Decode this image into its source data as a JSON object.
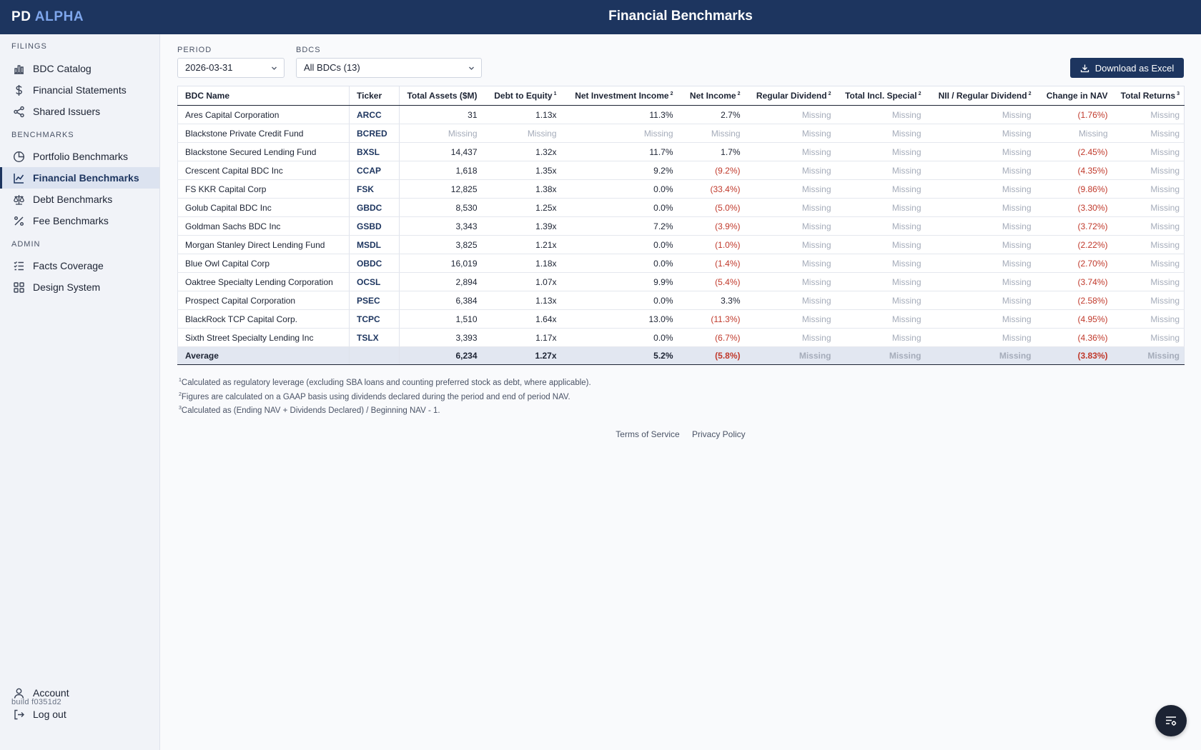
{
  "app": {
    "logo_prefix": "PD",
    "logo_accent": "ALPHA",
    "page_title": "Financial Benchmarks",
    "build": "build f0351d2",
    "colors": {
      "header_bg": "#1d355f",
      "accent": "#7ea6ec",
      "negative": "#c0392b"
    }
  },
  "sidebar": {
    "sections": [
      {
        "label": "FILINGS",
        "items": [
          {
            "label": "BDC Catalog",
            "icon": "bar-chart-icon"
          },
          {
            "label": "Financial Statements",
            "icon": "dollar-icon"
          },
          {
            "label": "Shared Issuers",
            "icon": "share-icon"
          }
        ]
      },
      {
        "label": "BENCHMARKS",
        "items": [
          {
            "label": "Portfolio Benchmarks",
            "icon": "pie-chart-icon"
          },
          {
            "label": "Financial Benchmarks",
            "icon": "line-chart-icon",
            "active": true
          },
          {
            "label": "Debt Benchmarks",
            "icon": "scale-icon"
          },
          {
            "label": "Fee Benchmarks",
            "icon": "percent-icon"
          }
        ]
      },
      {
        "label": "ADMIN",
        "items": [
          {
            "label": "Facts Coverage",
            "icon": "list-check-icon"
          },
          {
            "label": "Design System",
            "icon": "grid-icon"
          }
        ]
      }
    ],
    "bottom": [
      {
        "label": "Account",
        "icon": "user-icon"
      },
      {
        "label": "Log out",
        "icon": "logout-icon"
      }
    ]
  },
  "filters": {
    "period_label": "PERIOD",
    "period_value": "2026-03-31",
    "bdcs_label": "BDCS",
    "bdcs_value": "All BDCs (13)",
    "download_label": "Download as Excel"
  },
  "table": {
    "columns": [
      {
        "label": "BDC Name",
        "sup": ""
      },
      {
        "label": "Ticker",
        "sup": ""
      },
      {
        "label": "Total Assets ($M)",
        "sup": ""
      },
      {
        "label": "Debt to Equity",
        "sup": "1"
      },
      {
        "label": "Net Investment Income",
        "sup": "2"
      },
      {
        "label": "Net Income",
        "sup": "2"
      },
      {
        "label": "Regular Dividend",
        "sup": "2"
      },
      {
        "label": "Total Incl. Special",
        "sup": "2"
      },
      {
        "label": "NII / Regular Dividend",
        "sup": "2"
      },
      {
        "label": "Change in NAV",
        "sup": ""
      },
      {
        "label": "Total Returns",
        "sup": "3"
      }
    ],
    "rows": [
      [
        "Ares Capital Corporation",
        "ARCC",
        "31",
        "1.13x",
        "11.3%",
        "2.7%",
        "Missing",
        "Missing",
        "Missing",
        "(1.76%)",
        "Missing"
      ],
      [
        "Blackstone Private Credit Fund",
        "BCRED",
        "Missing",
        "Missing",
        "Missing",
        "Missing",
        "Missing",
        "Missing",
        "Missing",
        "Missing",
        "Missing"
      ],
      [
        "Blackstone Secured Lending Fund",
        "BXSL",
        "14,437",
        "1.32x",
        "11.7%",
        "1.7%",
        "Missing",
        "Missing",
        "Missing",
        "(2.45%)",
        "Missing"
      ],
      [
        "Crescent Capital BDC Inc",
        "CCAP",
        "1,618",
        "1.35x",
        "9.2%",
        "(9.2%)",
        "Missing",
        "Missing",
        "Missing",
        "(4.35%)",
        "Missing"
      ],
      [
        "FS KKR Capital Corp",
        "FSK",
        "12,825",
        "1.38x",
        "0.0%",
        "(33.4%)",
        "Missing",
        "Missing",
        "Missing",
        "(9.86%)",
        "Missing"
      ],
      [
        "Golub Capital BDC Inc",
        "GBDC",
        "8,530",
        "1.25x",
        "0.0%",
        "(5.0%)",
        "Missing",
        "Missing",
        "Missing",
        "(3.30%)",
        "Missing"
      ],
      [
        "Goldman Sachs BDC Inc",
        "GSBD",
        "3,343",
        "1.39x",
        "7.2%",
        "(3.9%)",
        "Missing",
        "Missing",
        "Missing",
        "(3.72%)",
        "Missing"
      ],
      [
        "Morgan Stanley Direct Lending Fund",
        "MSDL",
        "3,825",
        "1.21x",
        "0.0%",
        "(1.0%)",
        "Missing",
        "Missing",
        "Missing",
        "(2.22%)",
        "Missing"
      ],
      [
        "Blue Owl Capital Corp",
        "OBDC",
        "16,019",
        "1.18x",
        "0.0%",
        "(1.4%)",
        "Missing",
        "Missing",
        "Missing",
        "(2.70%)",
        "Missing"
      ],
      [
        "Oaktree Specialty Lending Corporation",
        "OCSL",
        "2,894",
        "1.07x",
        "9.9%",
        "(5.4%)",
        "Missing",
        "Missing",
        "Missing",
        "(3.74%)",
        "Missing"
      ],
      [
        "Prospect Capital Corporation",
        "PSEC",
        "6,384",
        "1.13x",
        "0.0%",
        "3.3%",
        "Missing",
        "Missing",
        "Missing",
        "(2.58%)",
        "Missing"
      ],
      [
        "BlackRock TCP Capital Corp.",
        "TCPC",
        "1,510",
        "1.64x",
        "13.0%",
        "(11.3%)",
        "Missing",
        "Missing",
        "Missing",
        "(4.95%)",
        "Missing"
      ],
      [
        "Sixth Street Specialty Lending Inc",
        "TSLX",
        "3,393",
        "1.17x",
        "0.0%",
        "(6.7%)",
        "Missing",
        "Missing",
        "Missing",
        "(4.36%)",
        "Missing"
      ]
    ],
    "average": [
      "Average",
      "",
      "6,234",
      "1.27x",
      "5.2%",
      "(5.8%)",
      "Missing",
      "Missing",
      "Missing",
      "(3.83%)",
      "Missing"
    ]
  },
  "footnotes": [
    {
      "num": "1",
      "text": "Calculated as regulatory leverage (excluding SBA loans and counting preferred stock as debt, where applicable)."
    },
    {
      "num": "2",
      "text": "Figures are calculated on a GAAP basis using dividends declared during the period and end of period NAV."
    },
    {
      "num": "3",
      "text": "Calculated as (Ending NAV + Dividends Declared) / Beginning NAV - 1."
    }
  ],
  "footer": {
    "terms": "Terms of Service",
    "privacy": "Privacy Policy"
  },
  "fab": {
    "icon": "filter-settings-icon"
  }
}
